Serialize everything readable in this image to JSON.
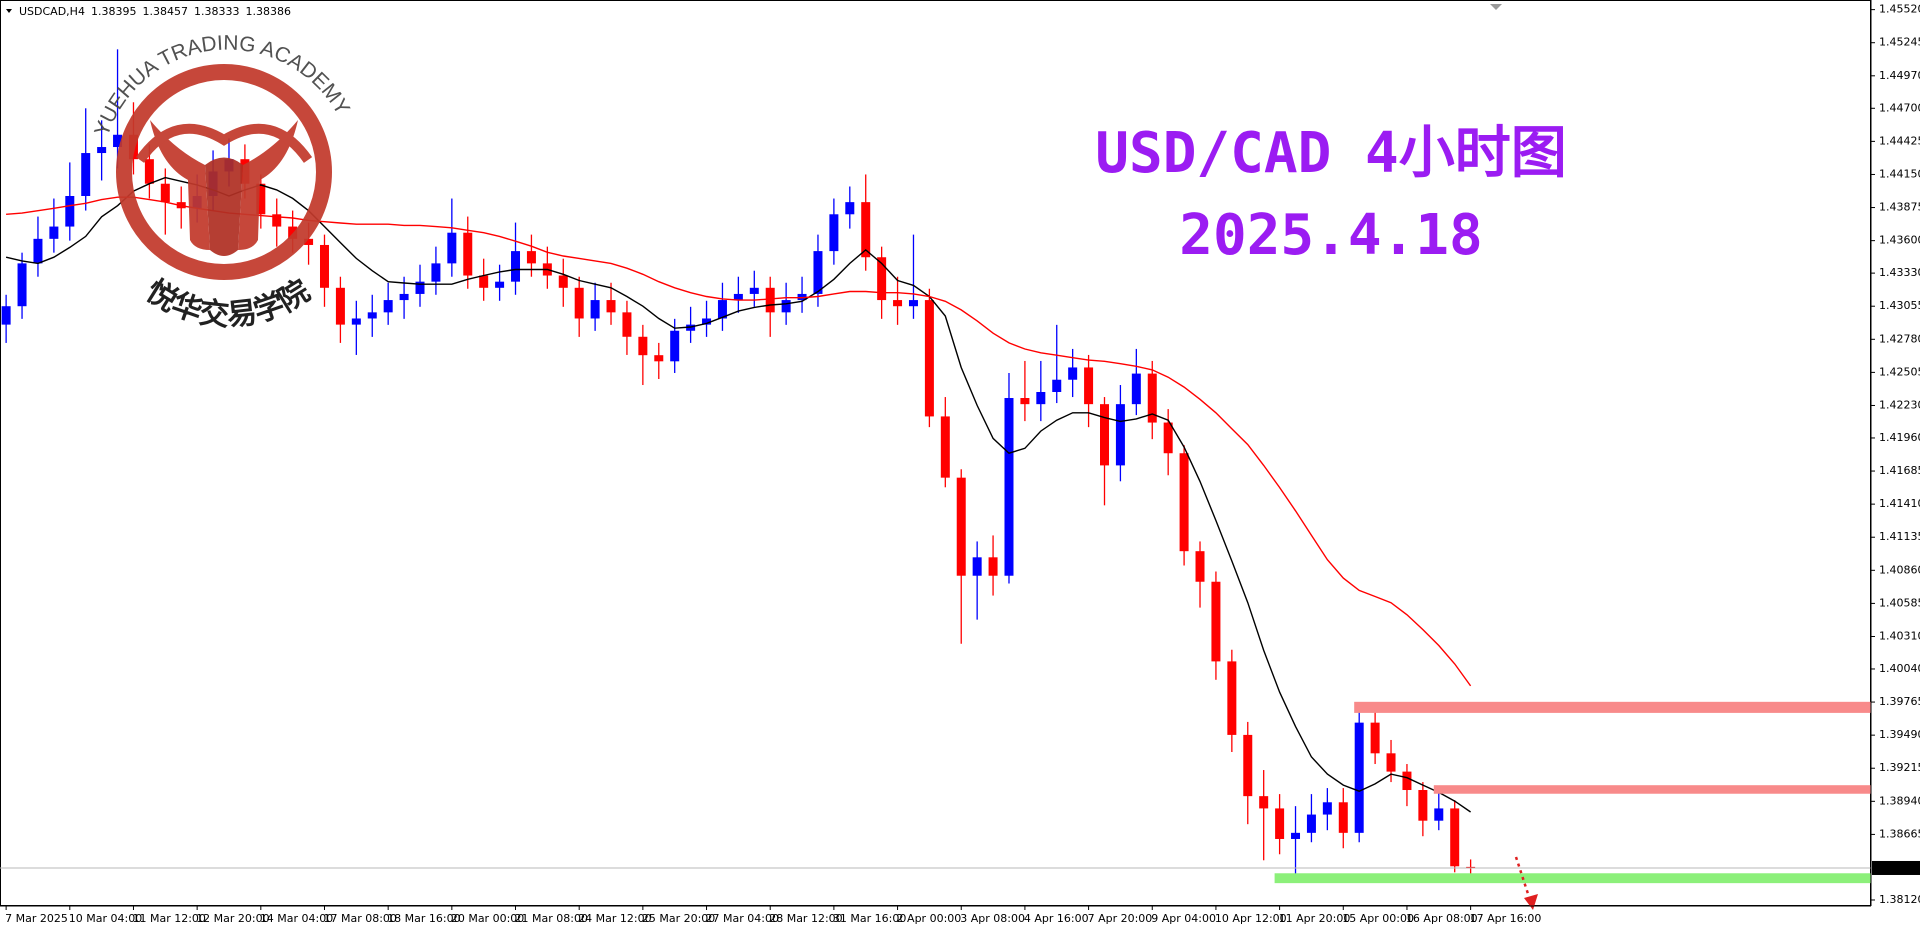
{
  "chart_data": {
    "type": "candlestick",
    "symbol": "USDCAD,H4",
    "title": "USD/CAD 4小时图",
    "subtitle": "2025.4.18",
    "watermark": {
      "name_en": "YUEHUA TRADING ACADEMY",
      "name_cn": "悦华交易学院"
    },
    "categories": [
      "7 Mar 2025",
      null,
      null,
      null,
      "10 Mar 04:00",
      null,
      null,
      null,
      "11 Mar 12:00",
      null,
      null,
      null,
      "12 Mar 20:00",
      null,
      null,
      null,
      "14 Mar 04:00",
      null,
      null,
      null,
      "17 Mar 08:00",
      null,
      null,
      null,
      "18 Mar 16:00",
      null,
      null,
      null,
      "20 Mar 00:00",
      null,
      null,
      null,
      "21 Mar 08:00",
      null,
      null,
      null,
      "24 Mar 12:00",
      null,
      null,
      null,
      "25 Mar 20:00",
      null,
      null,
      null,
      "27 Mar 04:00",
      null,
      null,
      null,
      "28 Mar 12:00",
      null,
      null,
      null,
      "31 Mar 16:00",
      null,
      null,
      null,
      "2 Apr 00:00",
      null,
      null,
      null,
      "3 Apr 08:00",
      null,
      null,
      null,
      "4 Apr 16:00",
      null,
      null,
      null,
      "7 Apr 20:00",
      null,
      null,
      null,
      "9 Apr 04:00",
      null,
      null,
      null,
      "10 Apr 12:00",
      null,
      null,
      null,
      "11 Apr 20:00",
      null,
      null,
      null,
      "15 Apr 00:00",
      null,
      null,
      null,
      "16 Apr 08:00",
      null,
      null,
      null,
      "17 Apr 16:00"
    ],
    "open": [
      1.42902,
      1.43055,
      1.43411,
      1.43615,
      1.43717,
      1.43971,
      1.44328,
      1.44378,
      1.4448,
      1.44277,
      1.44073,
      1.4392,
      1.43869,
      1.43971,
      1.44175,
      1.44277,
      1.44073,
      1.43819,
      1.43717,
      1.43615,
      1.43564,
      1.43208,
      1.42902,
      1.42953,
      1.43004,
      1.43106,
      1.43157,
      1.43259,
      1.43411,
      1.43666,
      1.4331,
      1.43208,
      1.43259,
      1.43513,
      1.43411,
      1.4331,
      1.43208,
      1.42953,
      1.43106,
      1.43004,
      1.42801,
      1.42648,
      1.42597,
      1.42851,
      1.42902,
      1.42953,
      1.43106,
      1.43157,
      1.43208,
      1.43004,
      1.43106,
      1.43157,
      1.43513,
      1.43819,
      1.4392,
      1.43462,
      1.43106,
      1.43055,
      1.43106,
      1.42139,
      1.4163,
      1.40815,
      1.40968,
      1.40815,
      1.42292,
      1.42241,
      1.42342,
      1.42444,
      1.42546,
      1.42241,
      1.41732,
      1.42241,
      1.42495,
      1.42088,
      1.41833,
      1.41019,
      1.40765,
      1.40103,
      1.39492,
      1.38983,
      1.38881,
      1.38627,
      1.38678,
      1.3883,
      1.38932,
      1.38678,
      1.39594,
      1.39339,
      1.39187,
      1.39034,
      1.38779,
      1.38881,
      1.38395
    ],
    "high": [
      1.4315,
      1.435,
      1.438,
      1.4395,
      1.4425,
      1.447,
      1.446,
      1.4519,
      1.4475,
      1.444,
      1.442,
      1.4405,
      1.4415,
      1.4435,
      1.4445,
      1.444,
      1.4415,
      1.4395,
      1.4385,
      1.4375,
      1.4365,
      1.433,
      1.431,
      1.4315,
      1.4325,
      1.433,
      1.434,
      1.4355,
      1.4395,
      1.438,
      1.4345,
      1.434,
      1.4375,
      1.4365,
      1.4355,
      1.4345,
      1.433,
      1.4325,
      1.4325,
      1.431,
      1.429,
      1.4275,
      1.4295,
      1.4305,
      1.431,
      1.4325,
      1.433,
      1.4335,
      1.433,
      1.4325,
      1.433,
      1.4365,
      1.4395,
      1.4405,
      1.4415,
      1.4355,
      1.433,
      1.4365,
      1.432,
      1.423,
      1.417,
      1.411,
      1.4115,
      1.425,
      1.426,
      1.426,
      1.429,
      1.427,
      1.4265,
      1.423,
      1.424,
      1.427,
      1.426,
      1.422,
      1.419,
      1.411,
      1.4085,
      1.402,
      1.396,
      1.392,
      1.39,
      1.389,
      1.39,
      1.3905,
      1.3905,
      1.397,
      1.3976,
      1.3945,
      1.3925,
      1.391,
      1.3905,
      1.3895,
      1.38457
    ],
    "low": [
      1.4275,
      1.4295,
      1.433,
      1.435,
      1.436,
      1.4385,
      1.441,
      1.442,
      1.4415,
      1.4395,
      1.4365,
      1.437,
      1.4375,
      1.4385,
      1.4405,
      1.4395,
      1.437,
      1.4355,
      1.435,
      1.434,
      1.4305,
      1.4275,
      1.4265,
      1.428,
      1.429,
      1.4295,
      1.4305,
      1.4315,
      1.433,
      1.432,
      1.431,
      1.431,
      1.4315,
      1.433,
      1.432,
      1.4305,
      1.428,
      1.4285,
      1.429,
      1.4265,
      1.424,
      1.4245,
      1.425,
      1.4275,
      1.428,
      1.4285,
      1.43,
      1.4305,
      1.428,
      1.429,
      1.43,
      1.4305,
      1.434,
      1.437,
      1.4335,
      1.4295,
      1.429,
      1.4295,
      1.4205,
      1.4155,
      1.4025,
      1.4045,
      1.4065,
      1.4075,
      1.421,
      1.421,
      1.4225,
      1.423,
      1.4205,
      1.414,
      1.416,
      1.4215,
      1.4195,
      1.4165,
      1.409,
      1.4055,
      1.3995,
      1.3935,
      1.3875,
      1.3845,
      1.385,
      1.3833,
      1.386,
      1.387,
      1.3855,
      1.386,
      1.3925,
      1.391,
      1.389,
      1.3865,
      1.387,
      1.3835,
      1.38333
    ],
    "close": [
      1.43055,
      1.43411,
      1.43615,
      1.43717,
      1.43971,
      1.44328,
      1.44378,
      1.4448,
      1.44277,
      1.44073,
      1.4392,
      1.43869,
      1.43971,
      1.44175,
      1.44277,
      1.44073,
      1.43819,
      1.43717,
      1.43615,
      1.43564,
      1.43208,
      1.42902,
      1.42953,
      1.43004,
      1.43106,
      1.43157,
      1.43259,
      1.43411,
      1.43666,
      1.4331,
      1.43208,
      1.43259,
      1.43513,
      1.43411,
      1.4331,
      1.43208,
      1.42953,
      1.43106,
      1.43004,
      1.42801,
      1.42648,
      1.42597,
      1.42851,
      1.42902,
      1.42953,
      1.43106,
      1.43157,
      1.43208,
      1.43004,
      1.43106,
      1.43157,
      1.43513,
      1.43819,
      1.4392,
      1.43462,
      1.43106,
      1.43055,
      1.43106,
      1.42139,
      1.4163,
      1.40815,
      1.40968,
      1.40815,
      1.42292,
      1.42241,
      1.42342,
      1.42444,
      1.42546,
      1.42241,
      1.41732,
      1.42241,
      1.42495,
      1.42088,
      1.41833,
      1.41019,
      1.40765,
      1.40103,
      1.39492,
      1.38983,
      1.38881,
      1.38627,
      1.38678,
      1.3883,
      1.38932,
      1.38678,
      1.39594,
      1.39339,
      1.39187,
      1.39034,
      1.38779,
      1.38881,
      1.384,
      1.38386
    ],
    "up_color": "#0000ff",
    "down_color": "#ff0000",
    "moving_averages": [
      {
        "color": "#000000",
        "values": [
          1.43462,
          1.43432,
          1.43411,
          1.43462,
          1.43544,
          1.43635,
          1.43798,
          1.4389,
          1.44012,
          1.44073,
          1.44124,
          1.44093,
          1.44063,
          1.44022,
          1.43971,
          1.44022,
          1.44063,
          1.44022,
          1.43951,
          1.43849,
          1.43717,
          1.43584,
          1.43452,
          1.4335,
          1.43259,
          1.43248,
          1.43238,
          1.43238,
          1.43238,
          1.43279,
          1.4331,
          1.4334,
          1.4336,
          1.4336,
          1.4336,
          1.4332,
          1.43269,
          1.43238,
          1.43208,
          1.43136,
          1.43055,
          1.42953,
          1.42872,
          1.42882,
          1.42912,
          1.42963,
          1.43014,
          1.43045,
          1.43065,
          1.43075,
          1.43096,
          1.43177,
          1.43279,
          1.43411,
          1.43523,
          1.43411,
          1.43269,
          1.43228,
          1.43136,
          1.42974,
          1.42546,
          1.4223,
          1.41956,
          1.41833,
          1.41874,
          1.42017,
          1.42108,
          1.42169,
          1.42169,
          1.42129,
          1.42098,
          1.42118,
          1.42159,
          1.42108,
          1.41884,
          1.41599,
          1.41274,
          1.40938,
          1.40591,
          1.40194,
          1.39848,
          1.39563,
          1.39309,
          1.39166,
          1.39075,
          1.39024,
          1.39085,
          1.39166,
          1.39136,
          1.39075,
          1.39014,
          1.38942,
          1.38851
        ]
      },
      {
        "color": "#ff0000",
        "values": [
          1.43819,
          1.43829,
          1.43849,
          1.43869,
          1.4389,
          1.4391,
          1.43941,
          1.43961,
          1.43961,
          1.43941,
          1.4392,
          1.4389,
          1.43869,
          1.43849,
          1.43829,
          1.43819,
          1.43808,
          1.43798,
          1.43788,
          1.43768,
          1.43757,
          1.43747,
          1.43737,
          1.43737,
          1.43737,
          1.43727,
          1.43727,
          1.43717,
          1.43707,
          1.43686,
          1.43666,
          1.43635,
          1.43595,
          1.43554,
          1.43503,
          1.43472,
          1.43452,
          1.43432,
          1.43411,
          1.43371,
          1.4332,
          1.43259,
          1.43208,
          1.43167,
          1.43136,
          1.43116,
          1.43106,
          1.43106,
          1.43116,
          1.43126,
          1.43126,
          1.43136,
          1.43157,
          1.43177,
          1.43177,
          1.43167,
          1.43167,
          1.43157,
          1.43136,
          1.43096,
          1.43024,
          1.42933,
          1.42831,
          1.4275,
          1.42699,
          1.42668,
          1.42648,
          1.42627,
          1.42607,
          1.42597,
          1.42577,
          1.42556,
          1.42526,
          1.42465,
          1.42383,
          1.42281,
          1.42169,
          1.42037,
          1.41905,
          1.41732,
          1.41548,
          1.41355,
          1.41151,
          1.40948,
          1.40795,
          1.40693,
          1.40642,
          1.40591,
          1.4049,
          1.40367,
          1.40235,
          1.40082,
          1.39899
        ]
      }
    ],
    "zones": [
      {
        "from_index": 85,
        "low": 1.39675,
        "high": 1.39767,
        "color": "#f88a8a"
      },
      {
        "from_index": 90,
        "low": 1.39003,
        "high": 1.39074,
        "color": "#f88a8a"
      },
      {
        "from_index": 80,
        "low": 1.3826,
        "high": 1.38342,
        "color": "#8cf07a"
      }
    ],
    "current_price": 1.38386,
    "ylim": [
      1.3807,
      1.456
    ],
    "yticks": [
      {
        "value": 1.4552,
        "label": "1.45520"
      },
      1.45245,
      {
        "value": 1.4497,
        "label": "1.44970"
      },
      {
        "value": 1.447,
        "label": "1.44700"
      },
      1.44425,
      {
        "value": 1.4415,
        "label": "1.44150"
      },
      1.43875,
      {
        "value": 1.436,
        "label": "1.43600"
      },
      {
        "value": 1.4333,
        "label": "1.43330"
      },
      1.43055,
      {
        "value": 1.4278,
        "label": "1.42780"
      },
      1.42505,
      {
        "value": 1.4223,
        "label": "1.42230"
      },
      {
        "value": 1.4196,
        "label": "1.41960"
      },
      1.41685,
      {
        "value": 1.4141,
        "label": "1.41410"
      },
      1.41135,
      {
        "value": 1.4086,
        "label": "1.40860"
      },
      1.40585,
      {
        "value": 1.4031,
        "label": "1.40310"
      },
      {
        "value": 1.4004,
        "label": "1.40040"
      },
      1.39765,
      {
        "value": 1.3949,
        "label": "1.39490"
      },
      1.39215,
      {
        "value": 1.3894,
        "label": "1.38940"
      },
      1.38665,
      {
        "value": 1.3812,
        "label": "1.38120"
      }
    ]
  }
}
